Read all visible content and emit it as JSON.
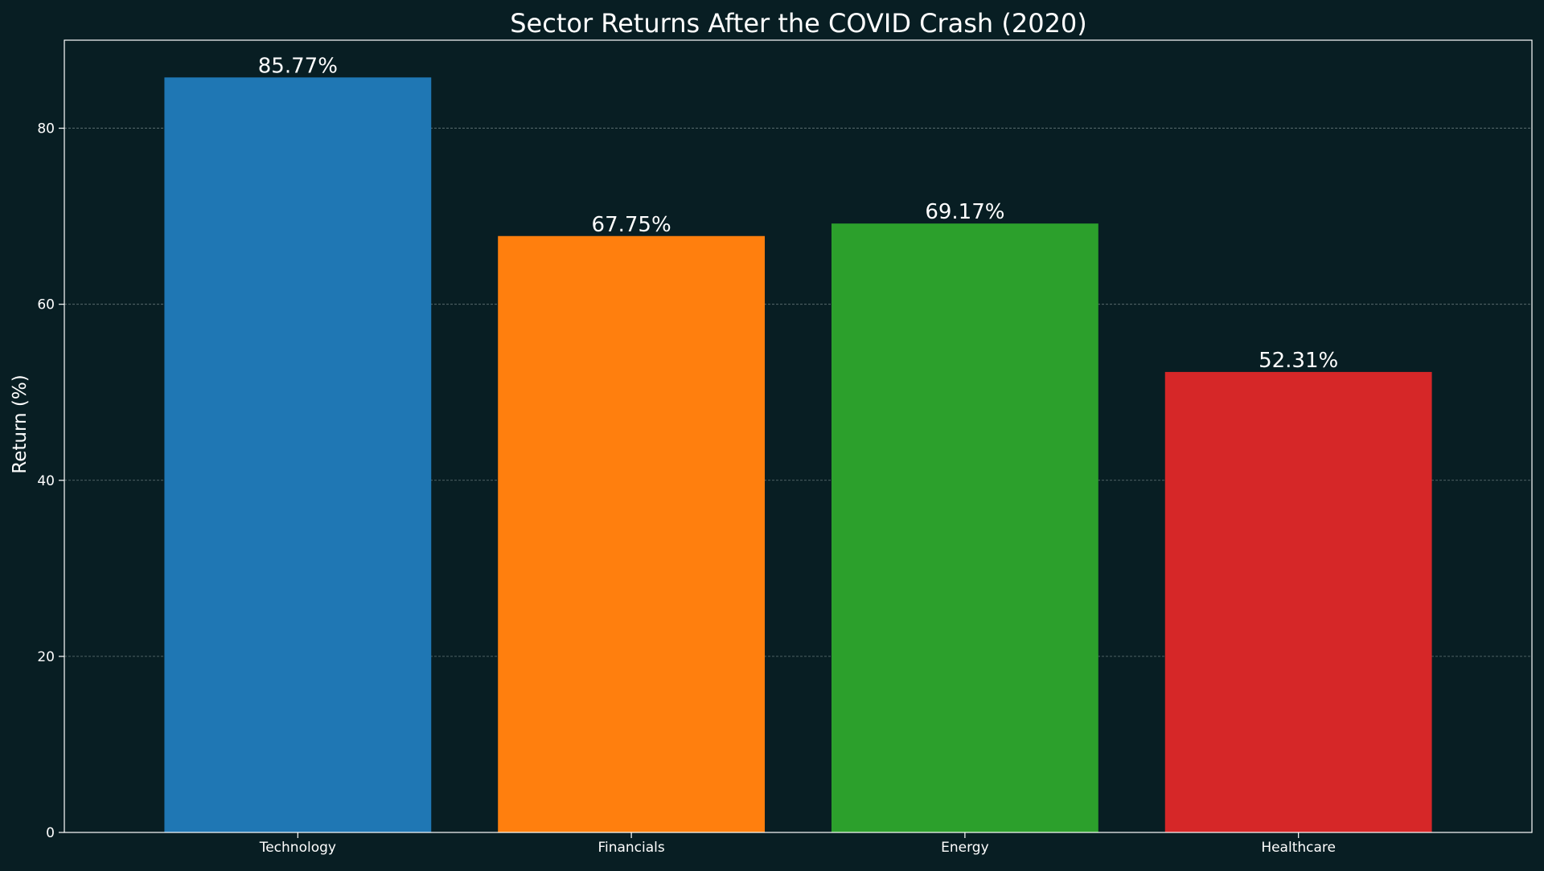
{
  "chart_data": {
    "type": "bar",
    "title": "Sector Returns After the COVID Crash (2020)",
    "xlabel": "",
    "ylabel": "Return (%)",
    "categories": [
      "Technology",
      "Financials",
      "Energy",
      "Healthcare"
    ],
    "values": [
      85.77,
      67.75,
      69.17,
      52.31
    ],
    "value_labels": [
      "85.77%",
      "67.75%",
      "69.17%",
      "52.31%"
    ],
    "colors": [
      "#1f77b4",
      "#ff7f0e",
      "#2ca02c",
      "#d62728"
    ],
    "ylim": [
      0,
      90
    ],
    "yticks": [
      0,
      20,
      40,
      60,
      80
    ],
    "grid": true,
    "background_color": "#081e23"
  }
}
